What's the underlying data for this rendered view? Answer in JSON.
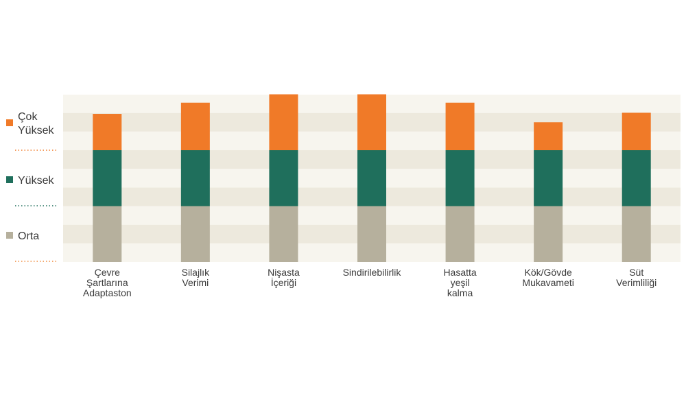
{
  "chart_data": {
    "type": "bar",
    "stacked": true,
    "categories": [
      [
        "Çevre",
        "Şartlarına",
        "Adaptaston"
      ],
      [
        "Silajlık",
        "Verimi"
      ],
      [
        "Nişasta",
        "İçeriği"
      ],
      [
        "Sindirilebilirlik"
      ],
      [
        "Hasatta",
        "yeşil",
        "kalma"
      ],
      [
        "Kök/Gövde",
        "Mukavameti"
      ],
      [
        "Süt",
        "Verimliliği"
      ]
    ],
    "levels": [
      {
        "label": [
          "Orta"
        ],
        "color": "#b6b09d",
        "dot_color": "#f08a3a"
      },
      {
        "label": [
          "Yüksek"
        ],
        "color": "#1f6f5c",
        "dot_color": "#1f6f5c"
      },
      {
        "label": [
          "Çok",
          "Yüksek"
        ],
        "color": "#f07a28",
        "dot_color": "#f07a28"
      }
    ],
    "series": [
      {
        "values": [
          1,
          1,
          1,
          1,
          1,
          1,
          1
        ]
      },
      {
        "values": [
          1,
          1,
          1,
          1,
          1,
          1,
          1
        ]
      },
      {
        "values": [
          0.65,
          0.85,
          1.0,
          1.0,
          0.85,
          0.5,
          0.67
        ]
      }
    ],
    "ylim": [
      0,
      3
    ],
    "grid": "alternating-bands",
    "band_colors": [
      "#f7f5ee",
      "#ede9dd"
    ],
    "legend": "left"
  }
}
